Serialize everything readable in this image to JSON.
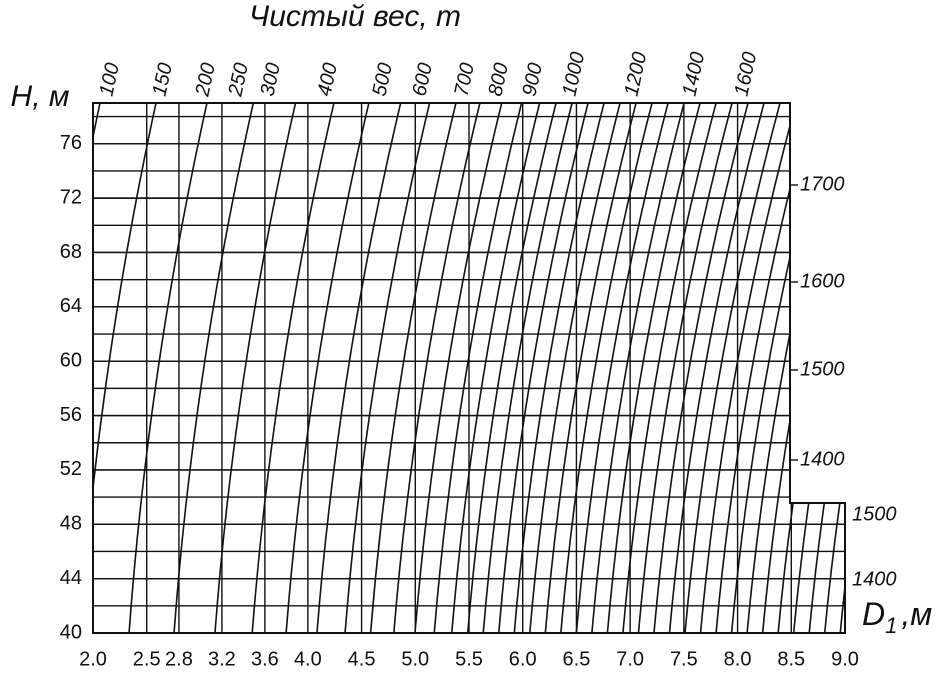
{
  "chart_data": {
    "type": "nomogram",
    "title": "Чистый вес, т",
    "y_label": "H, м",
    "x_label": "D",
    "x_label_sub": "1",
    "x_label_unit": ",м",
    "xlim": [
      2,
      9
    ],
    "ylim": [
      40,
      79
    ],
    "xticks": [
      {
        "value": 2,
        "label": "2.0"
      },
      2.5,
      2.8,
      3.2,
      3.6,
      {
        "value": 4,
        "label": "4.0"
      },
      4.5,
      {
        "value": 5,
        "label": "5.0"
      },
      5.5,
      {
        "value": 6,
        "label": "6.0"
      },
      6.5,
      {
        "value": 7,
        "label": "7.0"
      },
      7.5,
      {
        "value": 8,
        "label": "8.0"
      },
      8.5,
      {
        "value": 9,
        "label": "9.0"
      }
    ],
    "yticks": [
      40,
      44,
      48,
      52,
      56,
      60,
      64,
      68,
      72,
      76
    ],
    "top_labels": [
      "100",
      "150",
      "200",
      "250",
      "300",
      "400",
      "500",
      "600",
      "700",
      "800",
      "900",
      "1000",
      "1200",
      "1400",
      "1600"
    ],
    "right_labels_upper": [
      "1700",
      "1600",
      "1500",
      "1400"
    ],
    "right_labels_lower": [
      "1500",
      "1400"
    ]
  }
}
